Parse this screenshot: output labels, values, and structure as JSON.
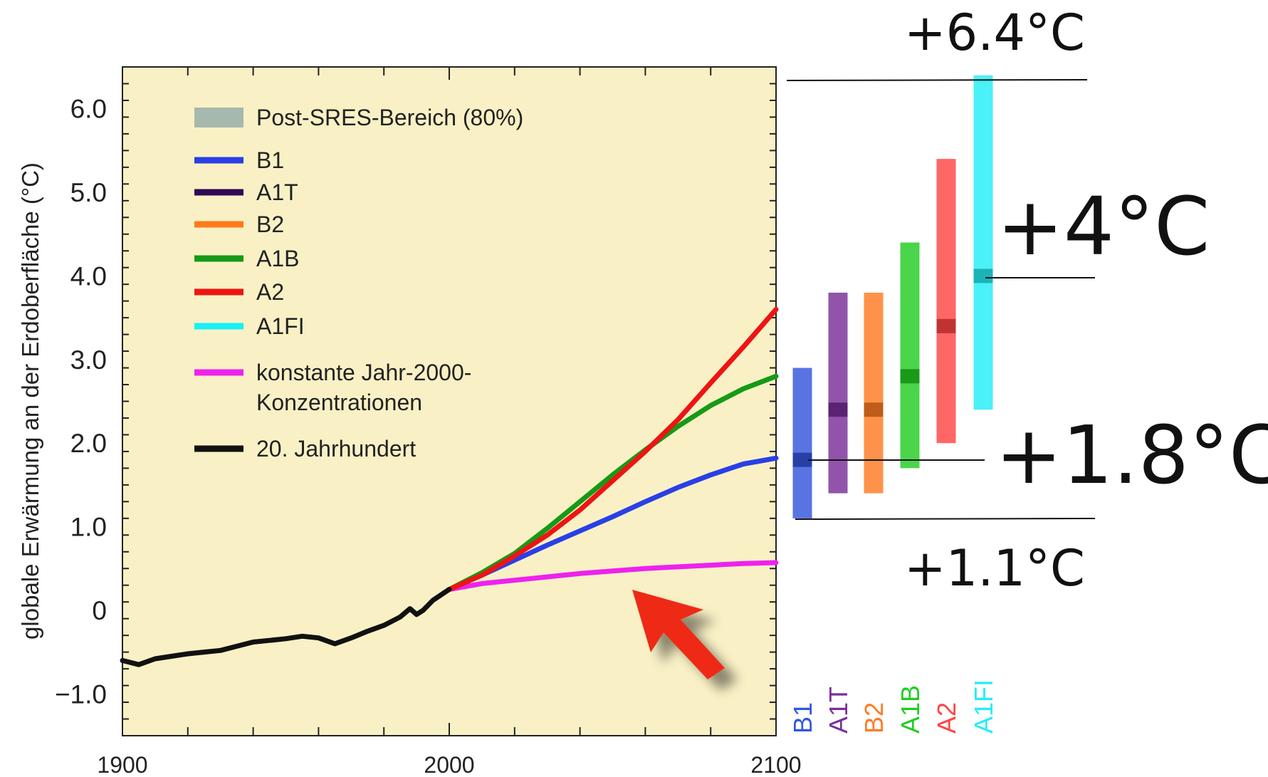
{
  "chart_data": {
    "type": "line",
    "title": "",
    "xlabel": "",
    "ylabel": "globale Erwärmung an der Erdoberfläche (°C)",
    "xlim": [
      1900,
      2100
    ],
    "ylim": [
      -1.5,
      6.5
    ],
    "x_ticks": [
      {
        "v": 1900,
        "label": "1900"
      },
      {
        "v": 2000,
        "label": "2000"
      },
      {
        "v": 2100,
        "label": "2100"
      }
    ],
    "y_ticks": [
      {
        "v": -1.0,
        "label": "−1.0"
      },
      {
        "v": 0,
        "label": "0"
      },
      {
        "v": 1.0,
        "label": "1.0"
      },
      {
        "v": 2.0,
        "label": "2.0"
      },
      {
        "v": 3.0,
        "label": "3.0"
      },
      {
        "v": 4.0,
        "label": "4.0"
      },
      {
        "v": 5.0,
        "label": "5.0"
      },
      {
        "v": 6.0,
        "label": "6.0"
      }
    ],
    "background_color": "#f9f1c5",
    "legend_placement": "top-left",
    "legend": [
      {
        "label": "Post-SRES-Bereich (80%)",
        "color": "#a7b8ae",
        "kind": "band"
      },
      {
        "label": "B1",
        "color": "#2a3fe6",
        "kind": "line"
      },
      {
        "label": "A1T",
        "color": "#2e0a55",
        "kind": "line"
      },
      {
        "label": "B2",
        "color": "#ff7a1a",
        "kind": "line"
      },
      {
        "label": "A1B",
        "color": "#169a16",
        "kind": "line"
      },
      {
        "label": "A2",
        "color": "#ee1414",
        "kind": "line"
      },
      {
        "label": "A1FI",
        "color": "#18f0f8",
        "kind": "line"
      },
      {
        "label": "konstante Jahr-2000-",
        "label2": "Konzentrationen",
        "color": "#ee22ee",
        "kind": "line"
      },
      {
        "label": "20. Jahrhundert",
        "color": "#111111",
        "kind": "line"
      }
    ],
    "series": [
      {
        "name": "20. Jahrhundert",
        "color": "#111111",
        "x": [
          1900,
          1905,
          1910,
          1915,
          1920,
          1925,
          1930,
          1935,
          1940,
          1945,
          1950,
          1955,
          1960,
          1965,
          1970,
          1975,
          1980,
          1985,
          1988,
          1990,
          1992,
          1995,
          2000
        ],
        "y": [
          -0.6,
          -0.65,
          -0.58,
          -0.55,
          -0.52,
          -0.5,
          -0.48,
          -0.43,
          -0.38,
          -0.36,
          -0.34,
          -0.31,
          -0.33,
          -0.4,
          -0.33,
          -0.25,
          -0.18,
          -0.08,
          0.02,
          -0.05,
          0.0,
          0.12,
          0.25
        ]
      },
      {
        "name": "B1",
        "color": "#2a3fe6",
        "x": [
          2000,
          2010,
          2020,
          2030,
          2040,
          2050,
          2060,
          2070,
          2080,
          2090,
          2100
        ],
        "y": [
          0.25,
          0.42,
          0.6,
          0.78,
          0.95,
          1.12,
          1.3,
          1.47,
          1.62,
          1.75,
          1.82
        ]
      },
      {
        "name": "A1B",
        "color": "#169a16",
        "x": [
          2000,
          2010,
          2020,
          2030,
          2040,
          2050,
          2060,
          2070,
          2080,
          2090,
          2100
        ],
        "y": [
          0.25,
          0.45,
          0.68,
          0.98,
          1.3,
          1.62,
          1.92,
          2.2,
          2.45,
          2.65,
          2.8
        ]
      },
      {
        "name": "A2",
        "color": "#ee1414",
        "x": [
          2000,
          2010,
          2020,
          2030,
          2040,
          2050,
          2060,
          2070,
          2080,
          2090,
          2100
        ],
        "y": [
          0.25,
          0.42,
          0.65,
          0.9,
          1.2,
          1.55,
          1.9,
          2.28,
          2.72,
          3.15,
          3.6
        ]
      },
      {
        "name": "konstante Jahr-2000-Konzentrationen",
        "color": "#ee22ee",
        "x": [
          2000,
          2010,
          2020,
          2030,
          2040,
          2050,
          2060,
          2070,
          2080,
          2090,
          2100
        ],
        "y": [
          0.25,
          0.32,
          0.36,
          0.4,
          0.44,
          0.47,
          0.5,
          0.52,
          0.54,
          0.56,
          0.57
        ]
      }
    ],
    "ranges": [
      {
        "name": "B1",
        "color": "#3355dd",
        "low": 1.1,
        "high": 2.9,
        "best": 1.8
      },
      {
        "name": "A1T",
        "color": "#7a2e99",
        "low": 1.4,
        "high": 3.8,
        "best": 2.4
      },
      {
        "name": "B2",
        "color": "#ff7a22",
        "low": 1.4,
        "high": 3.8,
        "best": 2.4
      },
      {
        "name": "A1B",
        "color": "#22cc22",
        "low": 1.7,
        "high": 4.4,
        "best": 2.8
      },
      {
        "name": "A2",
        "color": "#ff4444",
        "low": 2.0,
        "high": 5.4,
        "best": 3.4
      },
      {
        "name": "A1FI",
        "color": "#22eef5",
        "low": 2.4,
        "high": 6.4,
        "best": 4.0
      }
    ],
    "annotations": [
      {
        "text": "+6.4°C"
      },
      {
        "text": "+4°C"
      },
      {
        "text": "+1.8°C"
      },
      {
        "text": "+1.1°C"
      }
    ]
  },
  "colors": {
    "arrow": "#ee2a12"
  }
}
